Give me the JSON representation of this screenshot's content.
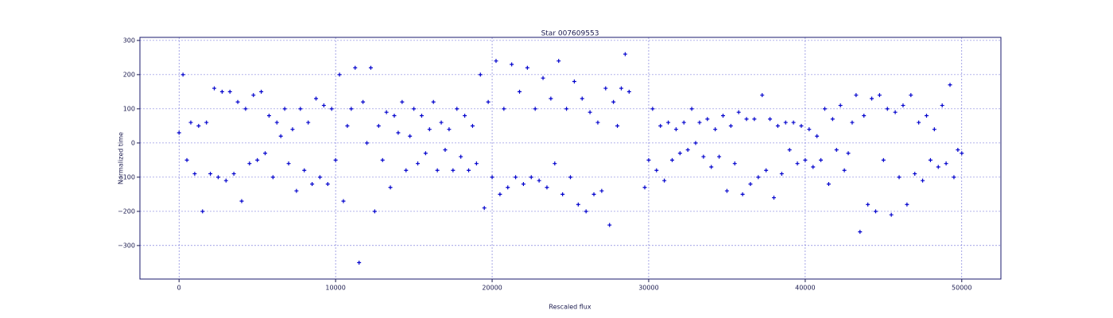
{
  "chart_data": {
    "type": "scatter",
    "title": "Star 007609553",
    "xlabel": "Rescaled flux",
    "ylabel": "Normalized time",
    "marker": "+",
    "color": "#0000cc",
    "grid": true,
    "xlim": [
      -2500,
      52500
    ],
    "ylim": [
      -398,
      309
    ],
    "xticks": [
      0,
      10000,
      20000,
      30000,
      40000,
      50000
    ],
    "yticks": [
      {
        "value": -300,
        "label": "−300"
      },
      {
        "value": -200,
        "label": "−200"
      },
      {
        "value": -100,
        "label": "−100"
      },
      0,
      100,
      200,
      300
    ],
    "x": [
      0,
      250,
      500,
      750,
      1000,
      1250,
      1500,
      1750,
      2000,
      2250,
      2500,
      2750,
      3000,
      3250,
      3500,
      3750,
      4000,
      4250,
      4500,
      4750,
      5000,
      5250,
      5500,
      5750,
      6000,
      6250,
      6500,
      6750,
      7000,
      7250,
      7500,
      7750,
      8000,
      8250,
      8500,
      8750,
      9000,
      9250,
      9500,
      9750,
      10000,
      10250,
      10500,
      10750,
      11000,
      11250,
      11500,
      11750,
      12000,
      12250,
      12500,
      12750,
      13000,
      13250,
      13500,
      13750,
      14000,
      14250,
      14500,
      14750,
      15000,
      15250,
      15500,
      15750,
      16000,
      16250,
      16500,
      16750,
      17000,
      17250,
      17500,
      17750,
      18000,
      18250,
      18500,
      18750,
      19000,
      19250,
      19500,
      19750,
      20000,
      20250,
      20500,
      20750,
      21000,
      21250,
      21500,
      21750,
      22000,
      22250,
      22500,
      22750,
      23000,
      23250,
      23500,
      23750,
      24000,
      24250,
      24500,
      24750,
      25000,
      25250,
      25500,
      25750,
      26000,
      26250,
      26500,
      26750,
      27000,
      27250,
      27500,
      27750,
      28000,
      28250,
      28500,
      28750,
      29750,
      30000,
      30250,
      30500,
      30750,
      31000,
      31250,
      31500,
      31750,
      32000,
      32250,
      32500,
      32750,
      33000,
      33250,
      33500,
      33750,
      34000,
      34250,
      34500,
      34750,
      35000,
      35250,
      35500,
      35750,
      36000,
      36250,
      36500,
      36750,
      37000,
      37250,
      37500,
      37750,
      38000,
      38250,
      38500,
      38750,
      39000,
      39250,
      39500,
      39750,
      40000,
      40250,
      40500,
      40750,
      41000,
      41250,
      41500,
      41750,
      42000,
      42250,
      42500,
      42750,
      43000,
      43250,
      43500,
      43750,
      44000,
      44250,
      44500,
      44750,
      45000,
      45250,
      45500,
      45750,
      46000,
      46250,
      46500,
      46750,
      47000,
      47250,
      47500,
      47750,
      48000,
      48250,
      48500,
      48750,
      49000,
      49250,
      49500,
      49750,
      50000
    ],
    "values": [
      30,
      200,
      -50,
      60,
      -90,
      50,
      -200,
      60,
      -90,
      160,
      -100,
      150,
      -110,
      150,
      -90,
      120,
      -170,
      100,
      -60,
      140,
      -50,
      150,
      -30,
      80,
      -100,
      60,
      20,
      100,
      -60,
      40,
      -140,
      100,
      -80,
      60,
      -120,
      130,
      -100,
      110,
      -120,
      100,
      -50,
      200,
      -170,
      50,
      100,
      220,
      -350,
      120,
      0,
      220,
      -200,
      50,
      -50,
      90,
      -130,
      80,
      30,
      120,
      -80,
      20,
      100,
      -60,
      80,
      -30,
      40,
      120,
      -80,
      60,
      -20,
      40,
      -80,
      100,
      -40,
      80,
      -80,
      50,
      -60,
      200,
      -190,
      120,
      -100,
      240,
      -150,
      100,
      -130,
      230,
      -100,
      150,
      -120,
      220,
      -100,
      100,
      -110,
      190,
      -130,
      130,
      -60,
      240,
      -150,
      100,
      -100,
      180,
      -180,
      130,
      -200,
      90,
      -150,
      60,
      -140,
      160,
      -240,
      120,
      50,
      160,
      260,
      150,
      -130,
      -50,
      100,
      -80,
      50,
      -110,
      60,
      -50,
      40,
      -30,
      60,
      -20,
      100,
      0,
      60,
      -40,
      70,
      -70,
      40,
      -40,
      80,
      -140,
      50,
      -60,
      90,
      -150,
      70,
      -120,
      70,
      -100,
      140,
      -80,
      70,
      -160,
      50,
      -90,
      60,
      -20,
      60,
      -60,
      50,
      -50,
      40,
      -70,
      20,
      -50,
      100,
      -120,
      70,
      -20,
      110,
      -80,
      -30,
      60,
      140,
      -260,
      80,
      -180,
      130,
      -200,
      140,
      -50,
      100,
      -210,
      90,
      -100,
      110,
      -180,
      140,
      -90,
      60,
      -110,
      80,
      -50,
      40,
      -70,
      110,
      -60,
      170,
      -100,
      -20,
      -30
    ]
  }
}
